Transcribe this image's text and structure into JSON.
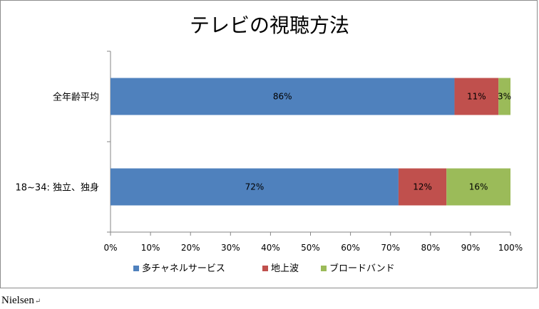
{
  "chart_data": {
    "type": "bar",
    "orientation": "horizontal",
    "stacked": "100%",
    "title": "テレビの視聴方法",
    "categories": [
      "全年齢平均",
      "18~34: 独立、独身"
    ],
    "series": [
      {
        "name": "多チャネルサービス",
        "color": "#4f81bd",
        "values": [
          86,
          72
        ],
        "labels": [
          "86%",
          "72%"
        ]
      },
      {
        "name": "地上波",
        "color": "#c0504d",
        "values": [
          11,
          12
        ],
        "labels": [
          "11%",
          "12%"
        ]
      },
      {
        "name": "ブロードバンド",
        "color": "#9bbb59",
        "values": [
          3,
          16
        ],
        "labels": [
          "3%",
          "16%"
        ]
      }
    ],
    "x_ticks": [
      "0%",
      "10%",
      "20%",
      "30%",
      "40%",
      "50%",
      "60%",
      "70%",
      "80%",
      "90%",
      "100%"
    ],
    "xlim": [
      0,
      100
    ],
    "grid": false,
    "legend_position": "bottom"
  },
  "source": {
    "text": "Nielsen",
    "para_mark": "↵"
  }
}
